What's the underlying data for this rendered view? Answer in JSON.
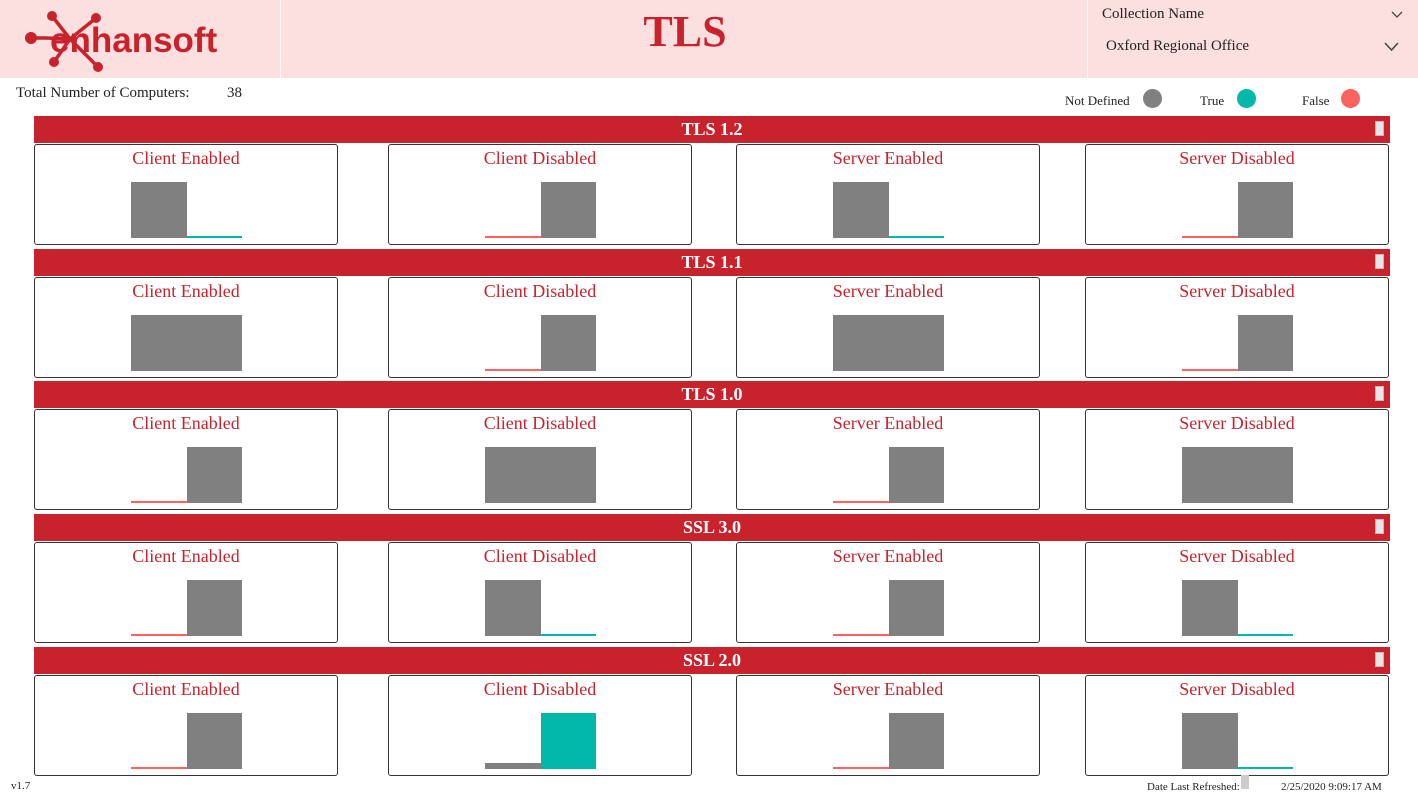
{
  "header": {
    "logo_text": "enhansoft",
    "title": "TLS",
    "slicer": {
      "title": "Collection Name",
      "value": "Oxford Regional Office"
    }
  },
  "summary": {
    "total_label": "Total Number of Computers:",
    "total_value": "38"
  },
  "legend": [
    {
      "label": "Not Defined",
      "color": "#808080"
    },
    {
      "label": "True",
      "color": "#01b8aa"
    },
    {
      "label": "False",
      "color": "#fd625e"
    }
  ],
  "colors": {
    "brand_red": "#c8232c",
    "header_bg": "#fcdfdf"
  },
  "chart_data": [
    {
      "type": "bar",
      "section": "TLS 1.2",
      "title": "Client Enabled",
      "categories": [
        "Not Defined",
        "True"
      ],
      "values": [
        38,
        0.5
      ]
    },
    {
      "type": "bar",
      "section": "TLS 1.2",
      "title": "Client Disabled",
      "categories": [
        "False",
        "Not Defined"
      ],
      "values": [
        1.5,
        38
      ]
    },
    {
      "type": "bar",
      "section": "TLS 1.2",
      "title": "Server Enabled",
      "categories": [
        "Not Defined",
        "True"
      ],
      "values": [
        38,
        0.5
      ]
    },
    {
      "type": "bar",
      "section": "TLS 1.2",
      "title": "Server Disabled",
      "categories": [
        "False",
        "Not Defined"
      ],
      "values": [
        1.5,
        38
      ]
    },
    {
      "type": "bar",
      "section": "TLS 1.1",
      "title": "Client Enabled",
      "categories": [
        "Not Defined"
      ],
      "values": [
        38
      ]
    },
    {
      "type": "bar",
      "section": "TLS 1.1",
      "title": "Client Disabled",
      "categories": [
        "False",
        "Not Defined"
      ],
      "values": [
        1.5,
        38
      ]
    },
    {
      "type": "bar",
      "section": "TLS 1.1",
      "title": "Server Enabled",
      "categories": [
        "Not Defined"
      ],
      "values": [
        38
      ]
    },
    {
      "type": "bar",
      "section": "TLS 1.1",
      "title": "Server Disabled",
      "categories": [
        "False",
        "Not Defined"
      ],
      "values": [
        1.5,
        38
      ]
    },
    {
      "type": "bar",
      "section": "TLS 1.0",
      "title": "Client Enabled",
      "categories": [
        "False",
        "Not Defined"
      ],
      "values": [
        1.5,
        38
      ]
    },
    {
      "type": "bar",
      "section": "TLS 1.0",
      "title": "Client Disabled",
      "categories": [
        "Not Defined"
      ],
      "values": [
        38
      ]
    },
    {
      "type": "bar",
      "section": "TLS 1.0",
      "title": "Server Enabled",
      "categories": [
        "False",
        "Not Defined"
      ],
      "values": [
        1.5,
        38
      ]
    },
    {
      "type": "bar",
      "section": "TLS 1.0",
      "title": "Server Disabled",
      "categories": [
        "Not Defined"
      ],
      "values": [
        38
      ]
    },
    {
      "type": "bar",
      "section": "SSL 3.0",
      "title": "Client Enabled",
      "categories": [
        "False",
        "Not Defined"
      ],
      "values": [
        0.8,
        38
      ]
    },
    {
      "type": "bar",
      "section": "SSL 3.0",
      "title": "Client Disabled",
      "categories": [
        "Not Defined",
        "True"
      ],
      "values": [
        38,
        0.8
      ]
    },
    {
      "type": "bar",
      "section": "SSL 3.0",
      "title": "Server Enabled",
      "categories": [
        "False",
        "Not Defined"
      ],
      "values": [
        0.8,
        38
      ]
    },
    {
      "type": "bar",
      "section": "SSL 3.0",
      "title": "Server Disabled",
      "categories": [
        "Not Defined",
        "True"
      ],
      "values": [
        38,
        0.8
      ]
    },
    {
      "type": "bar",
      "section": "SSL 2.0",
      "title": "Client Enabled",
      "categories": [
        "False",
        "Not Defined"
      ],
      "values": [
        0.8,
        38
      ]
    },
    {
      "type": "bar",
      "section": "SSL 2.0",
      "title": "Client Disabled",
      "categories": [
        "Not Defined",
        "True"
      ],
      "values": [
        4,
        38
      ]
    },
    {
      "type": "bar",
      "section": "SSL 2.0",
      "title": "Server Enabled",
      "categories": [
        "False",
        "Not Defined"
      ],
      "values": [
        0.8,
        38
      ]
    },
    {
      "type": "bar",
      "section": "SSL 2.0",
      "title": "Server Disabled",
      "categories": [
        "Not Defined",
        "True"
      ],
      "values": [
        38,
        0.8
      ]
    }
  ],
  "footer": {
    "version": "v1.7",
    "refreshed_label": "Date Last Refreshed:",
    "refreshed_value": "2/25/2020 9:09:17 AM"
  }
}
